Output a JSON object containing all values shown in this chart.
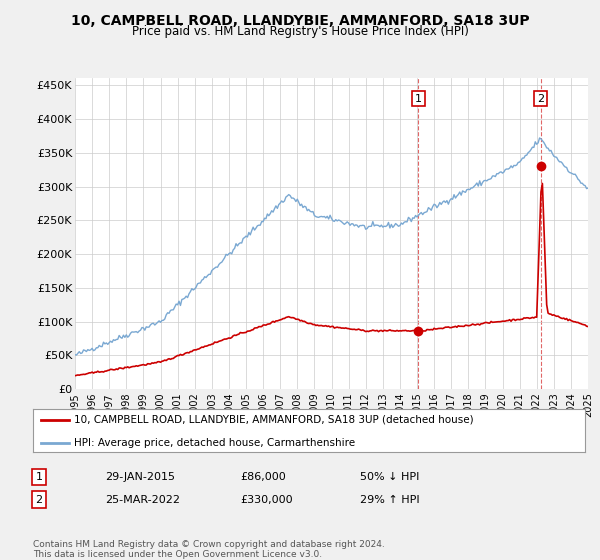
{
  "title": "10, CAMPBELL ROAD, LLANDYBIE, AMMANFORD, SA18 3UP",
  "subtitle": "Price paid vs. HM Land Registry's House Price Index (HPI)",
  "xlabel": "",
  "ylabel": "",
  "ylim": [
    0,
    460000
  ],
  "yticks": [
    0,
    50000,
    100000,
    150000,
    200000,
    250000,
    300000,
    350000,
    400000,
    450000
  ],
  "ytick_labels": [
    "£0",
    "£50K",
    "£100K",
    "£150K",
    "£200K",
    "£250K",
    "£300K",
    "£350K",
    "£400K",
    "£450K"
  ],
  "bg_color": "#f0f0f0",
  "plot_bg_color": "#ffffff",
  "grid_color": "#cccccc",
  "hpi_color": "#7aa8d2",
  "price_color": "#cc0000",
  "transaction_1": {
    "date": 2015.08,
    "price": 86000,
    "label": "1"
  },
  "transaction_2": {
    "date": 2022.23,
    "price": 330000,
    "label": "2"
  },
  "legend_label_price": "10, CAMPBELL ROAD, LLANDYBIE, AMMANFORD, SA18 3UP (detached house)",
  "legend_label_hpi": "HPI: Average price, detached house, Carmarthenshire",
  "table_rows": [
    {
      "num": "1",
      "date": "29-JAN-2015",
      "price": "£86,000",
      "change": "50% ↓ HPI"
    },
    {
      "num": "2",
      "date": "25-MAR-2022",
      "price": "£330,000",
      "change": "29% ↑ HPI"
    }
  ],
  "footnote": "Contains HM Land Registry data © Crown copyright and database right 2024.\nThis data is licensed under the Open Government Licence v3.0.",
  "xmin": 1995,
  "xmax": 2025,
  "xticks": [
    1995,
    1996,
    1997,
    1998,
    1999,
    2000,
    2001,
    2002,
    2003,
    2004,
    2005,
    2006,
    2007,
    2008,
    2009,
    2010,
    2011,
    2012,
    2013,
    2014,
    2015,
    2016,
    2017,
    2018,
    2019,
    2020,
    2021,
    2022,
    2023,
    2024,
    2025
  ]
}
